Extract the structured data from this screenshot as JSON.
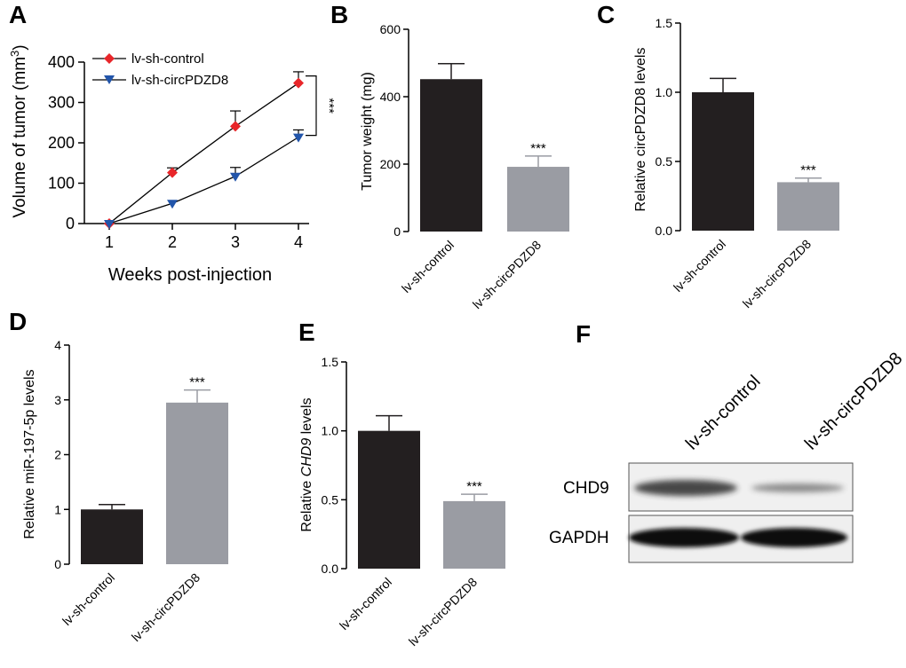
{
  "colors": {
    "control": "#e8262a",
    "circ": "#2255aa",
    "bar_dark": "#231f20",
    "bar_gray": "#9a9ca3"
  },
  "panels": {
    "A": "A",
    "B": "B",
    "C": "C",
    "D": "D",
    "E": "E",
    "F": "F"
  },
  "chart_data": [
    {
      "panel": "A",
      "type": "line",
      "xlabel": "Weeks post-injection",
      "ylabel": "Volume of tumor (mm³)",
      "ylabel_base": "Volume of tumor (mm",
      "ylabel_sup": "3",
      "ylabel_end": ")",
      "x": [
        1,
        2,
        3,
        4
      ],
      "x_ticks": [
        "1",
        "2",
        "3",
        "4"
      ],
      "ylim": [
        0,
        400
      ],
      "y_ticks": [
        "0",
        "100",
        "200",
        "300",
        "400"
      ],
      "series": [
        {
          "name": "lv-sh-control",
          "values": [
            0,
            126,
            241,
            348
          ],
          "err": [
            0,
            12,
            38,
            28
          ],
          "marker": "diamond"
        },
        {
          "name": "lv-sh-circPDZD8",
          "values": [
            0,
            50,
            117,
            214
          ],
          "err": [
            0,
            0,
            22,
            18
          ],
          "marker": "triangle-down"
        }
      ],
      "significance": "***"
    },
    {
      "panel": "B",
      "type": "bar",
      "ylabel": "Tumor weight (mg)",
      "categories": [
        "lv-sh-control",
        "lv-sh-circPDZD8"
      ],
      "values": [
        452,
        192
      ],
      "err": [
        46,
        32
      ],
      "ylim": [
        0,
        600
      ],
      "y_ticks": [
        "0",
        "200",
        "400",
        "600"
      ],
      "significance": "***"
    },
    {
      "panel": "C",
      "type": "bar",
      "ylabel": "Relative circPDZD8 levels",
      "categories": [
        "lv-sh-control",
        "lv-sh-circPDZD8"
      ],
      "values": [
        1.0,
        0.35
      ],
      "err": [
        0.1,
        0.03
      ],
      "ylim": [
        0,
        1.5
      ],
      "y_ticks": [
        "0.0",
        "0.5",
        "1.0",
        "1.5"
      ],
      "significance": "***"
    },
    {
      "panel": "D",
      "type": "bar",
      "ylabel": "Relative miR-197-5p levels",
      "categories": [
        "lv-sh-control",
        "lv-sh-circPDZD8"
      ],
      "values": [
        1.0,
        2.95
      ],
      "err": [
        0.09,
        0.23
      ],
      "ylim": [
        0,
        4
      ],
      "y_ticks": [
        "0",
        "1",
        "2",
        "3",
        "4"
      ],
      "significance": "***"
    },
    {
      "panel": "E",
      "type": "bar",
      "ylabel_pre": "Relative ",
      "ylabel_italic": "CHD9",
      "ylabel_post": " levels",
      "categories": [
        "lv-sh-control",
        "lv-sh-circPDZD8"
      ],
      "values": [
        1.0,
        0.49
      ],
      "err": [
        0.11,
        0.05
      ],
      "ylim": [
        0,
        1.5
      ],
      "y_ticks": [
        "0.0",
        "0.5",
        "1.0",
        "1.5"
      ],
      "significance": "***"
    }
  ],
  "blot": {
    "columns": [
      "lv-sh-control",
      "lv-sh-circPDZD8"
    ],
    "rows": [
      "CHD9",
      "GAPDH"
    ]
  }
}
